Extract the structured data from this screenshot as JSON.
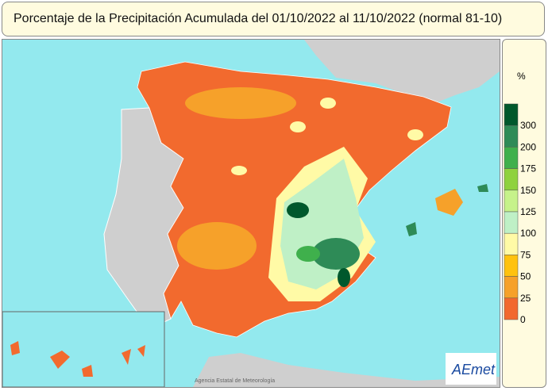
{
  "header": {
    "title": "Porcentaje de la Precipitación Acumulada del 01/10/2022 al 11/10/2022 (normal 81-10)"
  },
  "legend": {
    "unit": "%",
    "labels": [
      "300",
      "200",
      "175",
      "150",
      "125",
      "100",
      "75",
      "50",
      "25",
      "0"
    ],
    "colors": [
      "#00582c",
      "#2e8b57",
      "#3fb04c",
      "#8fd23e",
      "#c6f28a",
      "#bff0c6",
      "#fffaa6",
      "#ffc20e",
      "#f6a12a",
      "#f2682e"
    ]
  },
  "footer": {
    "agency": "Agencia Estatal de Meteorología",
    "logo": "AEmet"
  }
}
